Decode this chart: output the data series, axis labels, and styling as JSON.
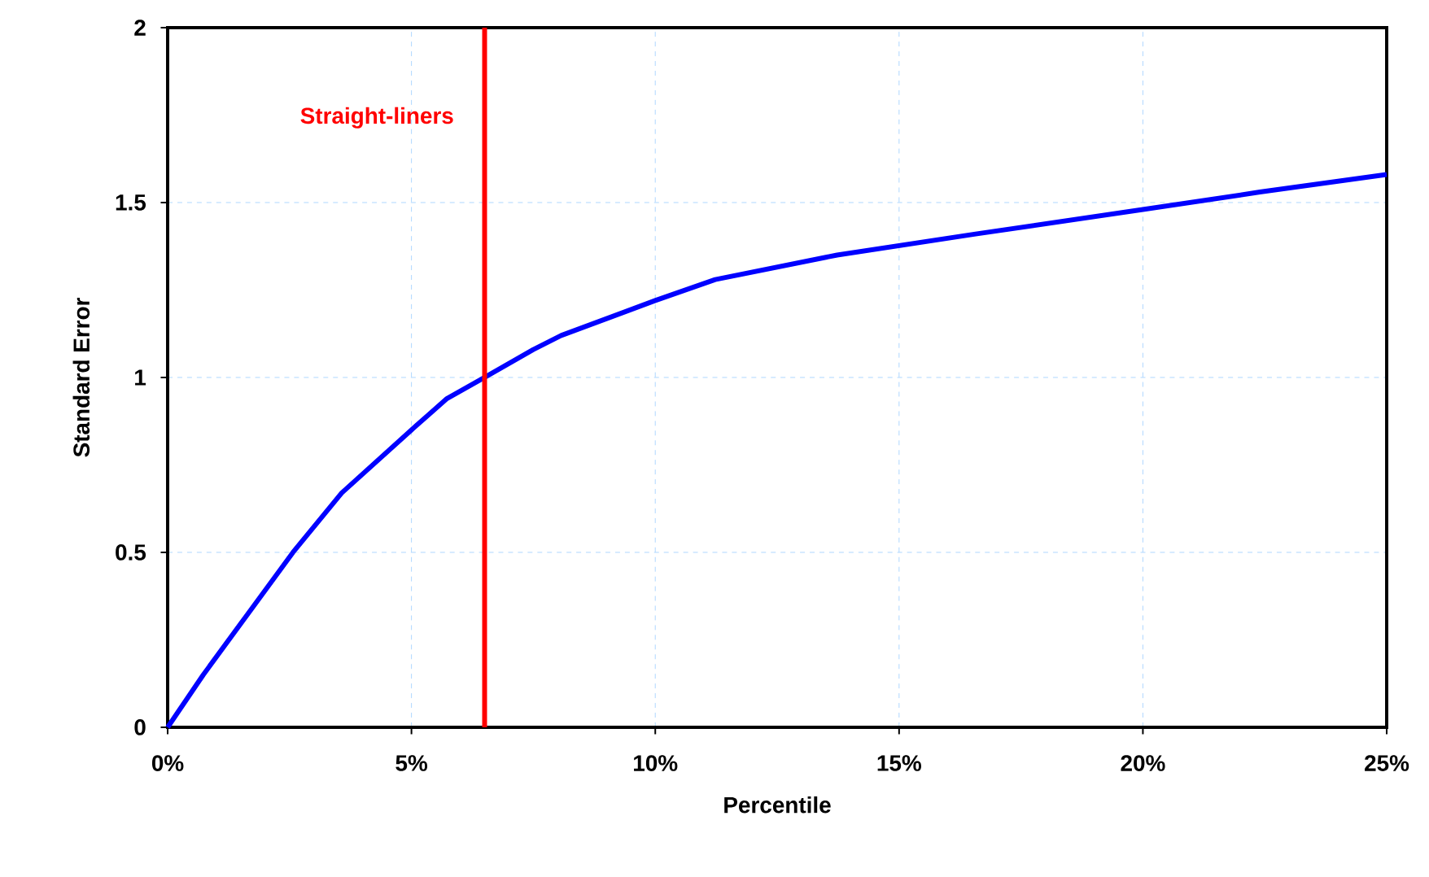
{
  "chart_data": {
    "type": "line",
    "xlabel": "Percentile",
    "ylabel": "Standard Error",
    "x": [
      0,
      0.73,
      1.57,
      2.57,
      3.57,
      5,
      5.73,
      6.5,
      7.5,
      8.07,
      10,
      11.23,
      13.73,
      16.57,
      20,
      22.4,
      25
    ],
    "series": [
      {
        "color": "#0000ff",
        "values": [
          0,
          0.15,
          0.31,
          0.5,
          0.67,
          0.85,
          0.94,
          1.0,
          1.08,
          1.12,
          1.22,
          1.28,
          1.35,
          1.41,
          1.48,
          1.53,
          1.58
        ]
      }
    ],
    "xlim": [
      0,
      25
    ],
    "xticks": [
      {
        "value": 0,
        "label": "0%"
      },
      {
        "value": 5,
        "label": "5%"
      },
      {
        "value": 10,
        "label": "10%"
      },
      {
        "value": 15,
        "label": "15%"
      },
      {
        "value": 20,
        "label": "20%"
      },
      {
        "value": 25,
        "label": "25%"
      }
    ],
    "ylim": [
      0,
      2
    ],
    "yticks": [
      0,
      0.5,
      1,
      1.5,
      2
    ],
    "grid": true,
    "marker": "none",
    "line_style": "solid",
    "ref_lines": [
      {
        "axis": "x",
        "value": 6.5,
        "label": "Straight-liners",
        "color": "#ff0000"
      }
    ]
  }
}
